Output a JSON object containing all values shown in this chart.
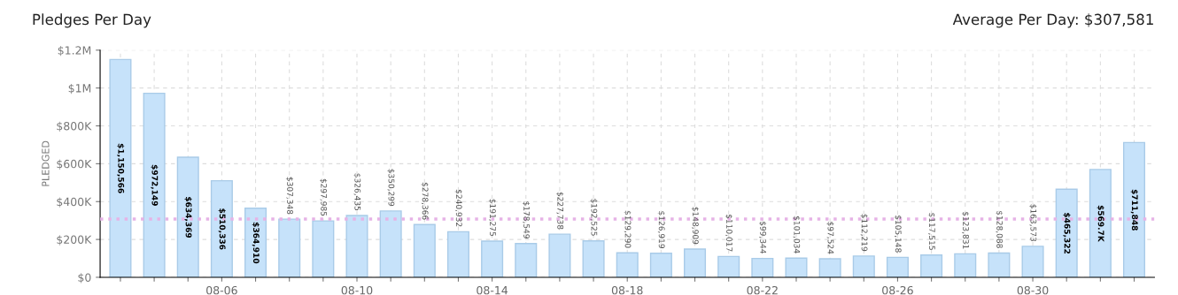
{
  "chart_data": {
    "type": "bar",
    "title": "Pledges Per Day",
    "ylabel": "PLEDGED",
    "categories": [
      null,
      null,
      null,
      "08-06",
      null,
      null,
      null,
      "08-10",
      null,
      null,
      null,
      "08-14",
      null,
      null,
      null,
      "08-18",
      null,
      null,
      null,
      "08-22",
      null,
      null,
      null,
      "08-26",
      null,
      null,
      null,
      "08-30",
      null,
      null,
      null
    ],
    "values": [
      1150566,
      972149,
      634369,
      510336,
      364910,
      307348,
      297985,
      326435,
      350299,
      278366,
      240932,
      191275,
      178549,
      227738,
      192525,
      129290,
      126919,
      148909,
      110017,
      99344,
      101034,
      97524,
      112219,
      105148,
      117515,
      123831,
      128088,
      163573,
      465322,
      569700,
      711848
    ],
    "value_labels": [
      "$1,150,566",
      "$972,149",
      "$634,369",
      "$510,336",
      "$364,910",
      "$307,348",
      "$297,985",
      "$326,435",
      "$350,299",
      "$278,366",
      "$240,932",
      "$191,275",
      "$178,549",
      "$227,738",
      "$192,525",
      "$129,290",
      "$126,919",
      "$148,909",
      "$110,017",
      "$99,344",
      "$101,034",
      "$97,524",
      "$112,219",
      "$105,148",
      "$117,515",
      "$123,831",
      "$128,088",
      "$163,573",
      "$465,322",
      "$569.7K",
      "$711,848"
    ],
    "color": "#c6e2fa",
    "ylim": [
      0,
      1200000
    ],
    "yticks": [
      {
        "value": 0,
        "label": "$0"
      },
      {
        "value": 200000,
        "label": "$200K"
      },
      {
        "value": 400000,
        "label": "$400K"
      },
      {
        "value": 600000,
        "label": "$600K"
      },
      {
        "value": 800000,
        "label": "$800K"
      },
      {
        "value": 1000000,
        "label": "$1M"
      },
      {
        "value": 1200000,
        "label": "$1.2M"
      }
    ],
    "ref_lines": [
      {
        "axis": "y",
        "value": 307581,
        "color": "#e6b3e6",
        "line_style": "dotted"
      }
    ],
    "annotations": [
      "Average Per Day: $307,581"
    ],
    "grid": true,
    "legend": false
  }
}
